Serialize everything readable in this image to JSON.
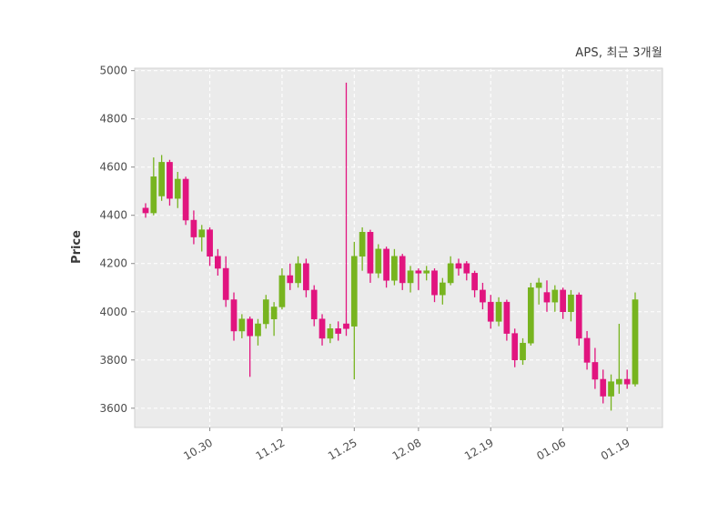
{
  "figure": {
    "title": "APS, 최근 3개월",
    "ylabel": "Price"
  },
  "chart_data": {
    "type": "candlestick",
    "title": "APS, 최근 3개월",
    "xlabel": "",
    "ylabel": "Price",
    "grid": "dashed",
    "legend": "none",
    "ylim": [
      3520,
      5010
    ],
    "yticks": [
      3600,
      3800,
      4000,
      4200,
      4400,
      4600,
      4800,
      5000
    ],
    "xticks": [
      {
        "index": 8,
        "label": "10.30"
      },
      {
        "index": 17,
        "label": "11.12"
      },
      {
        "index": 26,
        "label": "11.25"
      },
      {
        "index": 34,
        "label": "12.08"
      },
      {
        "index": 43,
        "label": "12.19"
      },
      {
        "index": 52,
        "label": "01.06"
      },
      {
        "index": 60,
        "label": "01.19"
      }
    ],
    "ohlc_format": [
      "open",
      "high",
      "low",
      "close"
    ],
    "candles": [
      [
        4430,
        4450,
        4390,
        4410
      ],
      [
        4410,
        4640,
        4400,
        4560
      ],
      [
        4480,
        4650,
        4460,
        4620
      ],
      [
        4620,
        4630,
        4440,
        4470
      ],
      [
        4470,
        4580,
        4430,
        4550
      ],
      [
        4550,
        4560,
        4360,
        4380
      ],
      [
        4380,
        4420,
        4280,
        4310
      ],
      [
        4310,
        4360,
        4250,
        4340
      ],
      [
        4340,
        4350,
        4190,
        4230
      ],
      [
        4230,
        4260,
        4150,
        4180
      ],
      [
        4180,
        4230,
        4020,
        4050
      ],
      [
        4050,
        4080,
        3880,
        3920
      ],
      [
        3920,
        3990,
        3890,
        3970
      ],
      [
        3970,
        3980,
        3730,
        3900
      ],
      [
        3900,
        3970,
        3860,
        3950
      ],
      [
        3950,
        4070,
        3930,
        4050
      ],
      [
        3970,
        4040,
        3900,
        4020
      ],
      [
        4020,
        4180,
        4010,
        4150
      ],
      [
        4150,
        4200,
        4090,
        4120
      ],
      [
        4120,
        4230,
        4100,
        4200
      ],
      [
        4200,
        4220,
        4060,
        4090
      ],
      [
        4090,
        4110,
        3940,
        3970
      ],
      [
        3970,
        3990,
        3860,
        3890
      ],
      [
        3890,
        3950,
        3870,
        3930
      ],
      [
        3930,
        3960,
        3880,
        3910
      ],
      [
        3950,
        4950,
        3900,
        3930
      ],
      [
        3940,
        4290,
        3720,
        4230
      ],
      [
        4230,
        4350,
        4170,
        4330
      ],
      [
        4330,
        4340,
        4120,
        4160
      ],
      [
        4160,
        4280,
        4140,
        4260
      ],
      [
        4260,
        4270,
        4100,
        4130
      ],
      [
        4130,
        4260,
        4110,
        4230
      ],
      [
        4230,
        4240,
        4090,
        4120
      ],
      [
        4120,
        4190,
        4080,
        4170
      ],
      [
        4170,
        4180,
        4090,
        4160
      ],
      [
        4160,
        4190,
        4130,
        4170
      ],
      [
        4170,
        4180,
        4040,
        4070
      ],
      [
        4070,
        4140,
        4030,
        4120
      ],
      [
        4120,
        4230,
        4110,
        4200
      ],
      [
        4200,
        4220,
        4150,
        4180
      ],
      [
        4200,
        4210,
        4130,
        4160
      ],
      [
        4160,
        4170,
        4060,
        4090
      ],
      [
        4090,
        4120,
        4010,
        4040
      ],
      [
        4040,
        4070,
        3930,
        3960
      ],
      [
        3960,
        4060,
        3940,
        4040
      ],
      [
        4040,
        4050,
        3880,
        3910
      ],
      [
        3910,
        3930,
        3770,
        3800
      ],
      [
        3800,
        3890,
        3780,
        3870
      ],
      [
        3870,
        4120,
        3860,
        4100
      ],
      [
        4100,
        4140,
        4030,
        4120
      ],
      [
        4080,
        4130,
        4000,
        4040
      ],
      [
        4040,
        4110,
        4000,
        4090
      ],
      [
        4090,
        4100,
        3970,
        4000
      ],
      [
        4000,
        4090,
        3960,
        4070
      ],
      [
        4070,
        4080,
        3860,
        3890
      ],
      [
        3890,
        3920,
        3760,
        3790
      ],
      [
        3790,
        3850,
        3680,
        3720
      ],
      [
        3720,
        3760,
        3620,
        3650
      ],
      [
        3650,
        3740,
        3590,
        3710
      ],
      [
        3700,
        3950,
        3660,
        3720
      ],
      [
        3720,
        3760,
        3680,
        3700
      ],
      [
        3700,
        4080,
        3690,
        4050
      ]
    ],
    "colors": {
      "up": "#77b41f",
      "down": "#e1147f",
      "plot_bg": "#ebebeb",
      "grid_line": "#ffffff",
      "spine": "#d0d0d0",
      "tick_mark": "#8a8a8a",
      "tick_text": "#4d4d4d",
      "title_text": "#3c3c3c"
    }
  }
}
